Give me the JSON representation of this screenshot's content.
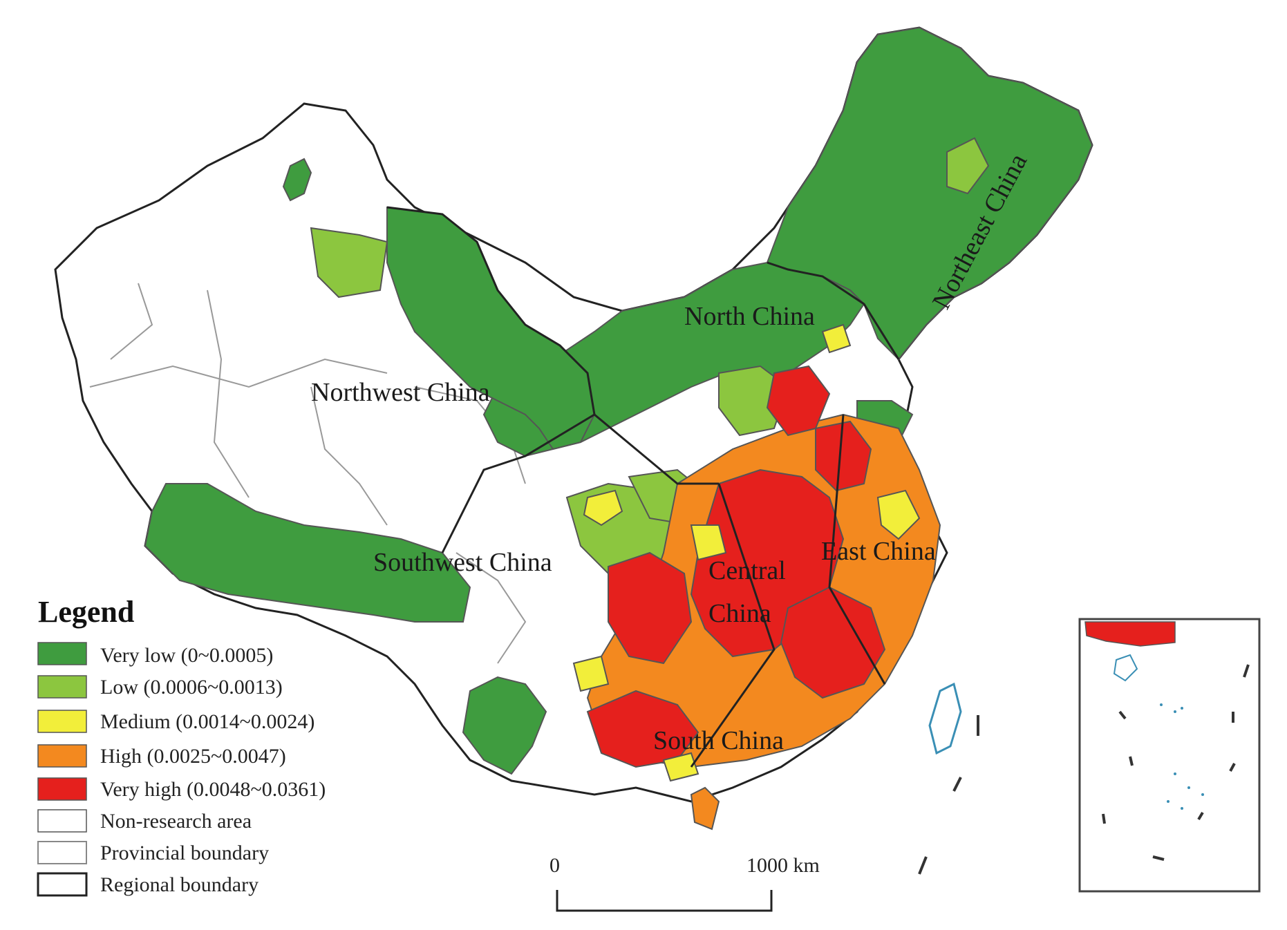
{
  "colors": {
    "very_low": "#3f9c3f",
    "low": "#8cc63f",
    "medium": "#f2ee3a",
    "high": "#f3891f",
    "very_high": "#e5201d",
    "non_research": "#ffffff",
    "boundary": "#777777",
    "regional_boundary": "#222222"
  },
  "regions": [
    {
      "key": "northwest",
      "label": "Northwest China"
    },
    {
      "key": "north",
      "label": "North China"
    },
    {
      "key": "northeast",
      "label": "Northeast China"
    },
    {
      "key": "southwest",
      "label": "Southwest China"
    },
    {
      "key": "central_1",
      "label": "Central"
    },
    {
      "key": "central_2",
      "label": "China"
    },
    {
      "key": "east",
      "label": "East China"
    },
    {
      "key": "south",
      "label": "South China"
    }
  ],
  "legend": {
    "title": "Legend",
    "items": [
      {
        "key": "very_low",
        "label": "Very low (0~0.0005)",
        "swatch": "fill",
        "color": "#3f9c3f"
      },
      {
        "key": "low",
        "label": "Low (0.0006~0.0013)",
        "swatch": "fill",
        "color": "#8cc63f"
      },
      {
        "key": "medium",
        "label": "Medium (0.0014~0.0024)",
        "swatch": "fill",
        "color": "#f2ee3a"
      },
      {
        "key": "high",
        "label": "High (0.0025~0.0047)",
        "swatch": "fill",
        "color": "#f3891f"
      },
      {
        "key": "very_high",
        "label": "Very high (0.0048~0.0361)",
        "swatch": "fill",
        "color": "#e5201d"
      },
      {
        "key": "non_research",
        "label": "Non-research area",
        "swatch": "fill",
        "color": "#ffffff"
      },
      {
        "key": "provincial",
        "label": "Provincial boundary",
        "swatch": "line",
        "color": "#777777"
      },
      {
        "key": "regional",
        "label": "Regional boundary",
        "swatch": "line",
        "color": "#222222"
      }
    ]
  },
  "scale_bar": {
    "start": "0",
    "end": "1000 km"
  }
}
